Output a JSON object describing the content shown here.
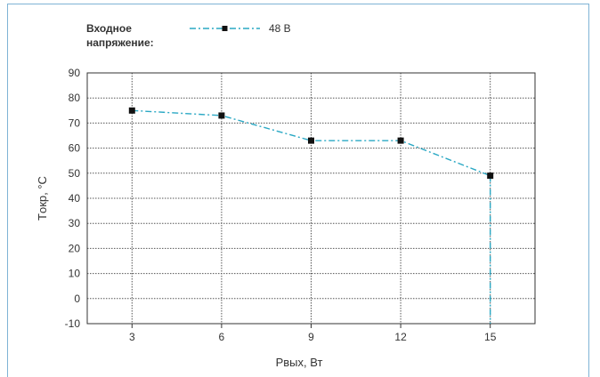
{
  "chart_data": {
    "type": "line",
    "legend_title": [
      "Входное",
      "напряжение:"
    ],
    "legend_placement": "top-left",
    "x": [
      3,
      6,
      9,
      12,
      15
    ],
    "series": [
      {
        "name": "48 В",
        "values": [
          75,
          73,
          63,
          63,
          49
        ],
        "color": "#2aa8c4",
        "marker": "square",
        "line_style": "dash-dot"
      }
    ],
    "x_ticks": [
      "3",
      "6",
      "9",
      "12",
      "15"
    ],
    "y_ticks": [
      -10,
      0,
      10,
      20,
      30,
      40,
      50,
      60,
      70,
      80,
      90
    ],
    "xlim": [
      1.5,
      16.5
    ],
    "ylim": [
      -10,
      90
    ],
    "drop_line": {
      "x": 15,
      "from": 49,
      "to": -10
    },
    "ylabel": "Tокр, °C",
    "xlabel": "Pвых, Вт",
    "grid": true
  }
}
